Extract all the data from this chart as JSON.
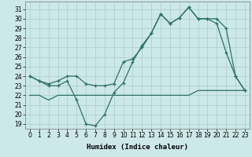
{
  "xlabel": "Humidex (Indice chaleur)",
  "x": [
    0,
    1,
    2,
    3,
    4,
    5,
    6,
    7,
    8,
    9,
    10,
    11,
    12,
    13,
    14,
    15,
    16,
    17,
    18,
    19,
    20,
    21,
    22,
    23
  ],
  "line_wavy": [
    24,
    23.5,
    23,
    23,
    23.5,
    21.5,
    19,
    18.8,
    20,
    22.3,
    23.3,
    25.5,
    27.2,
    28.5,
    30.5,
    29.5,
    30.1,
    31.2,
    30,
    30,
    30,
    29,
    24,
    22.5
  ],
  "line_smooth": [
    24,
    23.5,
    23.2,
    23.5,
    24,
    24,
    23.2,
    23,
    23,
    23.2,
    25.5,
    25.8,
    27,
    28.5,
    30.5,
    29.5,
    30.1,
    31.2,
    30,
    30,
    29.5,
    26.5,
    24,
    22.5
  ],
  "line_flat": [
    22,
    22,
    21.5,
    22,
    22,
    22,
    22,
    22,
    22,
    22,
    22,
    22,
    22,
    22,
    22,
    22,
    22,
    22,
    22.5,
    22.5,
    22.5,
    22.5,
    22.5,
    22.5
  ],
  "line_color": "#2d7068",
  "bg_color": "#cce8e8",
  "grid_color": "#aacccc",
  "ylim_min": 18.5,
  "ylim_max": 31.8,
  "yticks": [
    19,
    20,
    21,
    22,
    23,
    24,
    25,
    26,
    27,
    28,
    29,
    30,
    31
  ],
  "xticks": [
    0,
    1,
    2,
    3,
    4,
    5,
    6,
    7,
    8,
    9,
    10,
    11,
    12,
    13,
    14,
    15,
    16,
    17,
    18,
    19,
    20,
    21,
    22,
    23
  ],
  "xlabel_fontsize": 6.5,
  "tick_fontsize": 5.5
}
